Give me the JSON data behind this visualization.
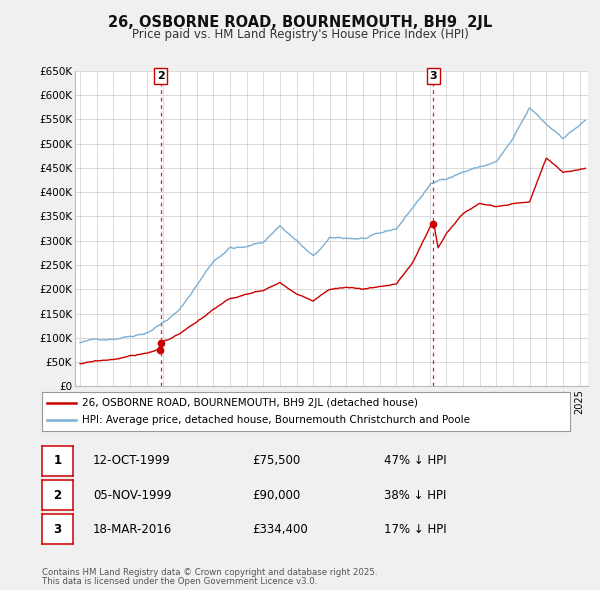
{
  "title": "26, OSBORNE ROAD, BOURNEMOUTH, BH9  2JL",
  "subtitle": "Price paid vs. HM Land Registry's House Price Index (HPI)",
  "ylim": [
    0,
    650000
  ],
  "yticks": [
    0,
    50000,
    100000,
    150000,
    200000,
    250000,
    300000,
    350000,
    400000,
    450000,
    500000,
    550000,
    600000,
    650000
  ],
  "ytick_labels": [
    "£0",
    "£50K",
    "£100K",
    "£150K",
    "£200K",
    "£250K",
    "£300K",
    "£350K",
    "£400K",
    "£450K",
    "£500K",
    "£550K",
    "£600K",
    "£650K"
  ],
  "background_color": "#f0f0f0",
  "plot_bg_color": "#ffffff",
  "grid_color": "#cccccc",
  "hpi_color": "#7bafd4",
  "price_color": "#cc0000",
  "vline_color": "#cc0000",
  "hpi_anchors": [
    [
      1995.0,
      90000
    ],
    [
      1996.0,
      95000
    ],
    [
      1997.0,
      100000
    ],
    [
      1998.0,
      108000
    ],
    [
      1999.0,
      118000
    ],
    [
      2000.0,
      140000
    ],
    [
      2001.0,
      165000
    ],
    [
      2002.0,
      215000
    ],
    [
      2003.0,
      265000
    ],
    [
      2004.0,
      295000
    ],
    [
      2005.0,
      295000
    ],
    [
      2006.0,
      305000
    ],
    [
      2007.0,
      340000
    ],
    [
      2008.0,
      310000
    ],
    [
      2009.0,
      275000
    ],
    [
      2010.0,
      310000
    ],
    [
      2011.0,
      310000
    ],
    [
      2012.0,
      310000
    ],
    [
      2013.0,
      315000
    ],
    [
      2014.0,
      325000
    ],
    [
      2015.0,
      370000
    ],
    [
      2016.0,
      415000
    ],
    [
      2017.0,
      430000
    ],
    [
      2018.0,
      445000
    ],
    [
      2019.0,
      455000
    ],
    [
      2020.0,
      465000
    ],
    [
      2021.0,
      510000
    ],
    [
      2022.0,
      570000
    ],
    [
      2023.0,
      535000
    ],
    [
      2024.0,
      510000
    ],
    [
      2025.3,
      545000
    ]
  ],
  "price_anchors": [
    [
      1995.0,
      47000
    ],
    [
      1996.0,
      51000
    ],
    [
      1997.0,
      55000
    ],
    [
      1998.0,
      62000
    ],
    [
      1999.0,
      67000
    ],
    [
      1999.78,
      75500
    ],
    [
      1999.84,
      90000
    ],
    [
      2000.0,
      92000
    ],
    [
      2001.0,
      108000
    ],
    [
      2002.0,
      130000
    ],
    [
      2003.0,
      155000
    ],
    [
      2004.0,
      175000
    ],
    [
      2005.0,
      185000
    ],
    [
      2006.0,
      192000
    ],
    [
      2007.0,
      210000
    ],
    [
      2008.0,
      185000
    ],
    [
      2009.0,
      170000
    ],
    [
      2010.0,
      195000
    ],
    [
      2011.0,
      200000
    ],
    [
      2012.0,
      195000
    ],
    [
      2013.0,
      200000
    ],
    [
      2014.0,
      205000
    ],
    [
      2015.0,
      250000
    ],
    [
      2016.21,
      334400
    ],
    [
      2016.5,
      280000
    ],
    [
      2017.0,
      310000
    ],
    [
      2018.0,
      350000
    ],
    [
      2019.0,
      375000
    ],
    [
      2020.0,
      370000
    ],
    [
      2021.0,
      375000
    ],
    [
      2022.0,
      380000
    ],
    [
      2023.0,
      470000
    ],
    [
      2024.0,
      440000
    ],
    [
      2025.3,
      450000
    ]
  ],
  "transactions": [
    {
      "num": "1",
      "date_x": 1999.78,
      "price": 75500
    },
    {
      "num": "2",
      "date_x": 1999.84,
      "price": 90000
    },
    {
      "num": "3",
      "date_x": 2016.21,
      "price": 334400
    }
  ],
  "vlines": [
    {
      "x": 1999.84,
      "label": "2"
    },
    {
      "x": 2016.21,
      "label": "3"
    }
  ],
  "legend_line1": "26, OSBORNE ROAD, BOURNEMOUTH, BH9 2JL (detached house)",
  "legend_line2": "HPI: Average price, detached house, Bournemouth Christchurch and Poole",
  "table_rows": [
    {
      "num": "1",
      "date": "12-OCT-1999",
      "price": "£75,500",
      "pct": "47% ↓ HPI"
    },
    {
      "num": "2",
      "date": "05-NOV-1999",
      "price": "£90,000",
      "pct": "38% ↓ HPI"
    },
    {
      "num": "3",
      "date": "18-MAR-2016",
      "price": "£334,400",
      "pct": "17% ↓ HPI"
    }
  ],
  "footer_line1": "Contains HM Land Registry data © Crown copyright and database right 2025.",
  "footer_line2": "This data is licensed under the Open Government Licence v3.0.",
  "xmin": 1994.7,
  "xmax": 2025.5,
  "xticks_start": 1995,
  "xticks_end": 2025
}
